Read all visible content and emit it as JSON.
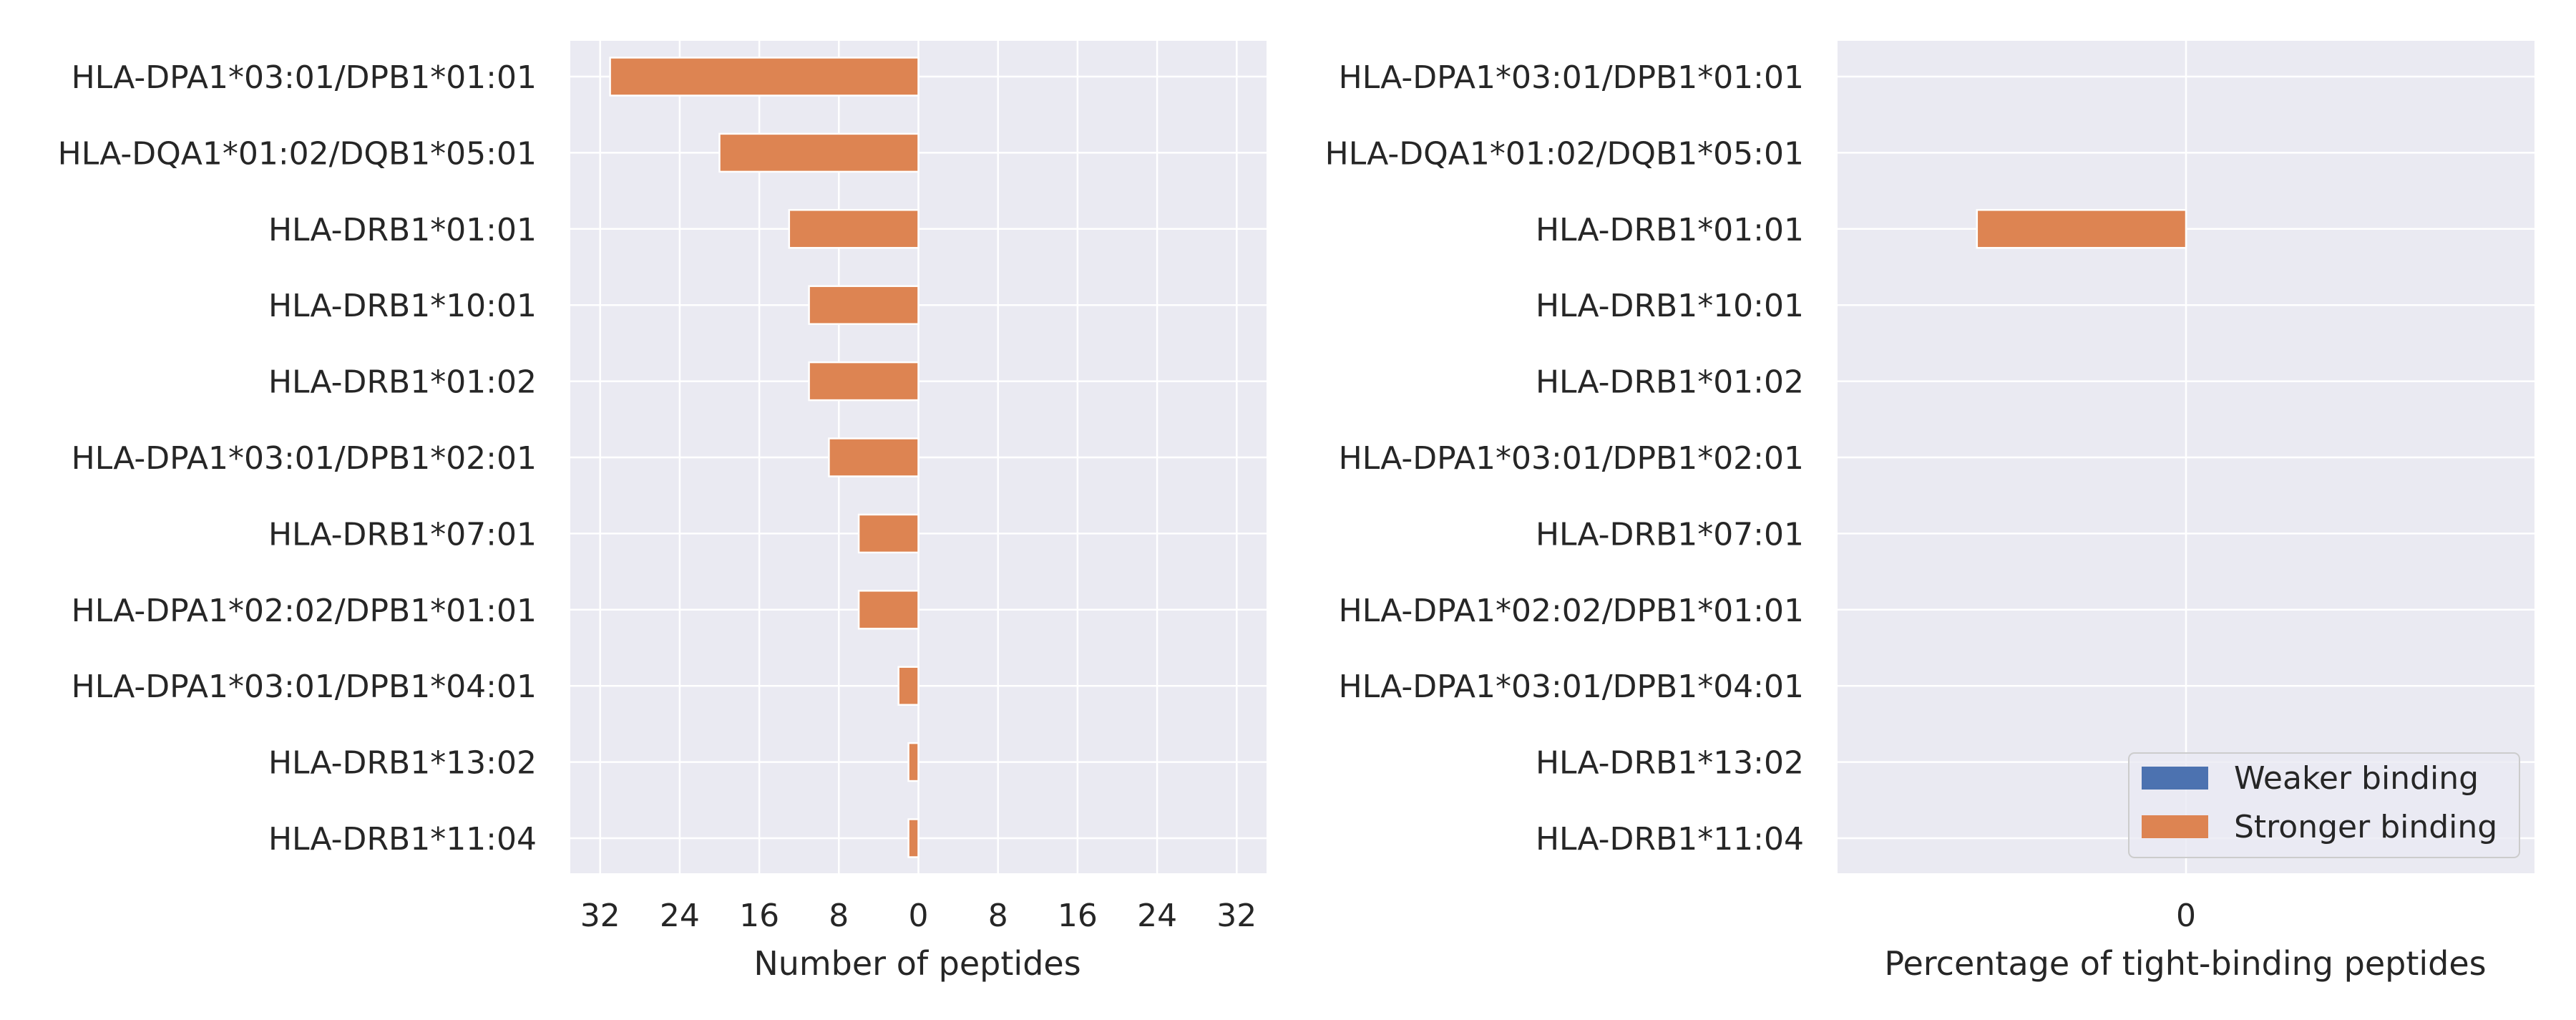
{
  "colors": {
    "weaker": "#4c72b0",
    "stronger": "#dd8452",
    "panel_bg": "#eaeaf2",
    "grid": "#ffffff",
    "text": "#262626"
  },
  "chart_data": [
    {
      "type": "bar",
      "orientation": "horizontal",
      "stacked": true,
      "categories": [
        "HLA-DPA1*03:01/DPB1*01:01",
        "HLA-DQA1*01:02/DQB1*05:01",
        "HLA-DRB1*01:01",
        "HLA-DRB1*10:01",
        "HLA-DRB1*01:02",
        "HLA-DPA1*03:01/DPB1*02:01",
        "HLA-DRB1*07:01",
        "HLA-DPA1*02:02/DPB1*01:01",
        "HLA-DPA1*03:01/DPB1*04:01",
        "HLA-DRB1*13:02",
        "HLA-DRB1*11:04"
      ],
      "series": [
        {
          "name": "Weaker binding",
          "color": "#4c72b0",
          "values": [
            0,
            0,
            0,
            0,
            0,
            0,
            0,
            0,
            0,
            0,
            0
          ]
        },
        {
          "name": "Stronger binding",
          "color": "#dd8452",
          "values": [
            -31,
            -20,
            -13,
            -11,
            -11,
            -9,
            -6,
            -6,
            -2,
            -1,
            -1
          ]
        }
      ],
      "xlim": [
        -35,
        35
      ],
      "xticks": [
        -32,
        -24,
        -16,
        -8,
        0,
        8,
        16,
        24,
        32
      ],
      "xtick_labels": [
        "32",
        "24",
        "16",
        "8",
        "0",
        "8",
        "16",
        "24",
        "32"
      ],
      "xlabel": "Number of peptides",
      "ylabel": "",
      "title": "",
      "grid": true
    },
    {
      "type": "bar",
      "orientation": "horizontal",
      "stacked": true,
      "categories": [
        "HLA-DPA1*03:01/DPB1*01:01",
        "HLA-DQA1*01:02/DQB1*05:01",
        "HLA-DRB1*01:01",
        "HLA-DRB1*10:01",
        "HLA-DRB1*01:02",
        "HLA-DPA1*03:01/DPB1*02:01",
        "HLA-DRB1*07:01",
        "HLA-DPA1*02:02/DPB1*01:01",
        "HLA-DPA1*03:01/DPB1*04:01",
        "HLA-DRB1*13:02",
        "HLA-DRB1*11:04"
      ],
      "series": [
        {
          "name": "Weaker binding",
          "color": "#4c72b0",
          "values": [
            0,
            0,
            0,
            0,
            0,
            0,
            0,
            0,
            0,
            0,
            0
          ]
        },
        {
          "name": "Stronger binding",
          "color": "#dd8452",
          "values": [
            0,
            0,
            -0.6,
            0,
            0,
            0,
            0,
            0,
            0,
            0,
            0
          ]
        }
      ],
      "xlim": [
        -1,
        1
      ],
      "xticks": [
        0
      ],
      "xtick_labels": [
        "0"
      ],
      "xlabel": "Percentage of tight-binding peptides",
      "ylabel": "",
      "title": "",
      "grid": true,
      "legend": {
        "placement": "lower-right",
        "entries": [
          "Weaker binding",
          "Stronger binding"
        ]
      }
    }
  ]
}
